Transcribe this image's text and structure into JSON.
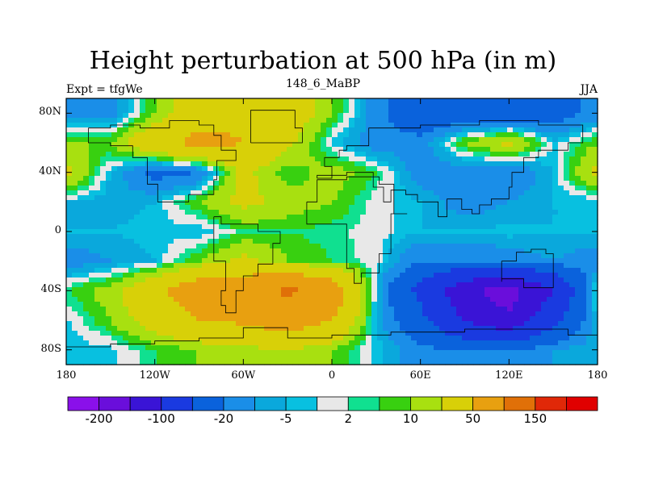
{
  "chart_data": {
    "type": "heatmap",
    "title": "Height perturbation at 500 hPa (in m)",
    "subtitle_left": "Expt = tfgWe",
    "subtitle_center": "148_6_MaBP",
    "subtitle_right": "JJA",
    "x_ticks": [
      "180",
      "120W",
      "60W",
      "0",
      "60E",
      "120E",
      "180"
    ],
    "x_tick_values": [
      -180,
      -120,
      -60,
      0,
      60,
      120,
      180
    ],
    "y_ticks": [
      "80N",
      "40N",
      "0",
      "40S",
      "80S"
    ],
    "y_tick_values": [
      80,
      40,
      0,
      -40,
      -80
    ],
    "xlim": [
      -180,
      180
    ],
    "ylim": [
      -90,
      90
    ],
    "colorbar_labels": [
      "-200",
      "-100",
      "-20",
      "-5",
      "2",
      "10",
      "50",
      "150"
    ],
    "colorbar_colors": [
      "#8a10ea",
      "#6a0edb",
      "#3a14d6",
      "#1a3ae0",
      "#0a62dc",
      "#1a8ee8",
      "#0aa8dc",
      "#08c0e0",
      "#e8e8e8",
      "#10e090",
      "#38d010",
      "#a8e010",
      "#d8d008",
      "#e8a010",
      "#e07008",
      "#e02808",
      "#e00000"
    ],
    "level_midpoints": [
      -250,
      -175,
      -125,
      -75,
      -35,
      -15,
      -7.5,
      -3,
      0,
      4,
      7.5,
      15,
      35,
      75,
      125,
      175,
      250
    ],
    "field": {
      "lons": [
        -180,
        -150,
        -120,
        -90,
        -60,
        -30,
        0,
        30,
        60,
        90,
        120,
        150,
        180
      ],
      "lats": [
        80,
        60,
        40,
        20,
        0,
        -20,
        -40,
        -60,
        -80
      ],
      "values": [
        [
          -15,
          -15,
          10,
          35,
          45,
          35,
          10,
          -15,
          -35,
          -35,
          -35,
          -30,
          -15
        ],
        [
          10,
          10,
          40,
          60,
          50,
          25,
          -3,
          -15,
          -15,
          10,
          25,
          -3,
          10
        ],
        [
          25,
          -5,
          -25,
          -20,
          25,
          5,
          15,
          5,
          -15,
          -15,
          -20,
          -5,
          25
        ],
        [
          -5,
          -7.5,
          -5,
          10,
          25,
          15,
          10,
          0,
          -5,
          -15,
          -10,
          -5,
          -5
        ],
        [
          -5,
          -5,
          -3,
          -5,
          4,
          5,
          3,
          0,
          -5,
          -5,
          -3,
          -5,
          -5
        ],
        [
          -15,
          -10,
          -5,
          10,
          25,
          10,
          5,
          0,
          -20,
          -20,
          -15,
          -10,
          -15
        ],
        [
          5,
          15,
          40,
          75,
          75,
          110,
          75,
          -5,
          -60,
          -140,
          -175,
          -100,
          5
        ],
        [
          -3,
          10,
          30,
          50,
          55,
          70,
          50,
          -5,
          -40,
          -100,
          -140,
          -60,
          -3
        ],
        [
          -5,
          -3,
          5,
          10,
          15,
          20,
          10,
          -3,
          -15,
          -20,
          -20,
          -10,
          -5
        ]
      ]
    }
  }
}
